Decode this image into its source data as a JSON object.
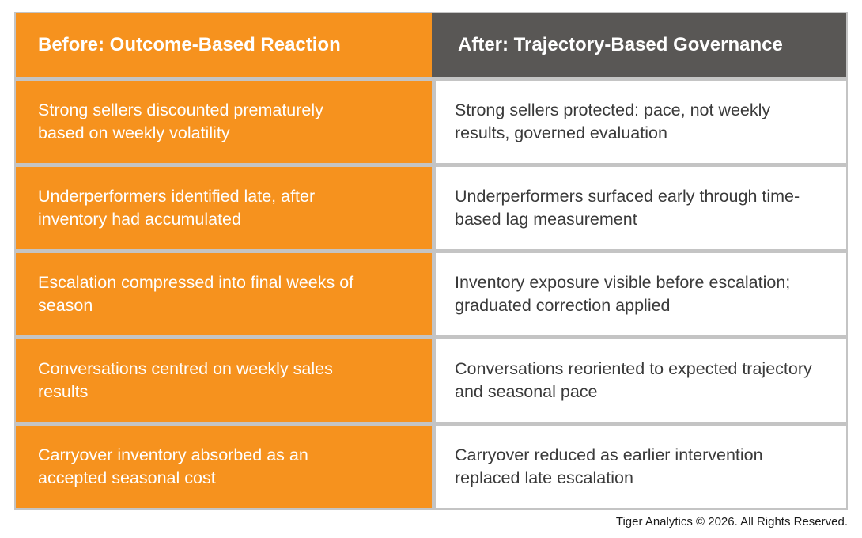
{
  "table": {
    "header": {
      "before": "Before: Outcome-Based Reaction",
      "after": "After: Trajectory-Based Governance"
    },
    "rows": [
      {
        "before": "Strong sellers discounted prematurely based on weekly volatility",
        "after": "Strong sellers protected: pace, not weekly results, governed evaluation"
      },
      {
        "before": "Underperformers identified late, after inventory had accumulated",
        "after": "Underperformers surfaced early through time-based lag measurement"
      },
      {
        "before": "Escalation compressed into final weeks of season",
        "after": "Inventory exposure visible before escalation; graduated correction applied"
      },
      {
        "before": "Conversations centred on weekly sales results",
        "after": "Conversations reoriented to expected trajectory and seasonal pace"
      },
      {
        "before": "Carryover inventory absorbed as an accepted seasonal cost",
        "after": "Carryover reduced as earlier intervention replaced late escalation"
      }
    ]
  },
  "footer": {
    "copyright": "Tiger Analytics © 2026. All Rights Reserved."
  },
  "colors": {
    "accent_orange": "#f6921e",
    "header_gray": "#595755",
    "divider_gray": "#c4c4c4",
    "body_text": "#3a3a3a"
  }
}
